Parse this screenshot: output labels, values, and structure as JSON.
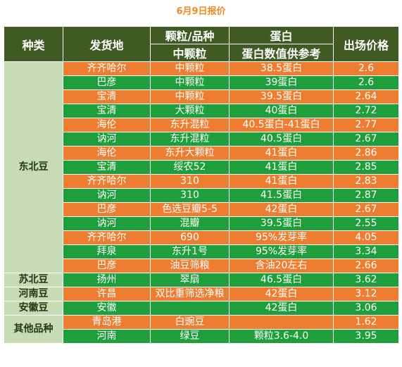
{
  "title": "6月9日报价",
  "headers": {
    "category": "种类",
    "origin": "发货地",
    "variety_top": "颗粒/品种",
    "variety_bottom": "中颗粒",
    "protein_top": "蛋白",
    "protein_bottom": "蛋白数值供参考",
    "price": "出场价格"
  },
  "groups": [
    {
      "category": "东北豆",
      "rows": [
        {
          "origin": "齐齐哈尔",
          "variety": "中颗粒",
          "protein": "38.5蛋白",
          "price": "2.6",
          "color": "orange"
        },
        {
          "origin": "巴彦",
          "variety": "中颗粒",
          "protein": "39蛋白",
          "price": "2.6",
          "color": "green"
        },
        {
          "origin": "宝清",
          "variety": "中颗粒",
          "protein": "39.5蛋白",
          "price": "2.64",
          "color": "orange"
        },
        {
          "origin": "宝清",
          "variety": "大颗粒",
          "protein": "40蛋白",
          "price": "2.72",
          "color": "green"
        },
        {
          "origin": "海伦",
          "variety": "东升混粒",
          "protein": "40.5蛋白-41蛋白",
          "price": "2.77",
          "color": "orange"
        },
        {
          "origin": "讷河",
          "variety": "东升混粒",
          "protein": "40.5蛋白",
          "price": "2.67",
          "color": "green"
        },
        {
          "origin": "海伦",
          "variety": "东升大颗粒",
          "protein": "41蛋白",
          "price": "2.86",
          "color": "orange"
        },
        {
          "origin": "宝清",
          "variety": "绥农52",
          "protein": "41蛋白",
          "price": "2.85",
          "color": "green"
        },
        {
          "origin": "齐齐哈尔",
          "variety": "310",
          "protein": "41蛋白",
          "price": "2.83",
          "color": "orange"
        },
        {
          "origin": "讷河",
          "variety": "310",
          "protein": "41.5蛋白",
          "price": "2.87",
          "color": "green"
        },
        {
          "origin": "巴彦",
          "variety": "色选豆瓣5-5",
          "protein": "42蛋白",
          "price": "2.67",
          "color": "orange"
        },
        {
          "origin": "讷河",
          "variety": "混瓣",
          "protein": "39.5蛋白",
          "price": "2.55",
          "color": "green"
        },
        {
          "origin": "齐齐哈尔",
          "variety": "690",
          "protein": "95%发芽率",
          "price": "4.05",
          "color": "orange"
        },
        {
          "origin": "拜泉",
          "variety": "东升1号",
          "protein": "95%发芽率",
          "price": "3.34",
          "color": "green"
        },
        {
          "origin": "巴彦",
          "variety": "油豆筛粮",
          "protein": "含油20左右",
          "price": "2.66",
          "color": "orange"
        }
      ]
    },
    {
      "category": "苏北豆",
      "rows": [
        {
          "origin": "扬州",
          "variety": "翠扇",
          "protein": "46.5蛋白",
          "price": "3.62",
          "color": "green"
        }
      ]
    },
    {
      "category": "河南豆",
      "rows": [
        {
          "origin": "许昌",
          "variety": "双比重筛选净粮",
          "protein": "42蛋白",
          "price": "3.12",
          "color": "orange"
        }
      ]
    },
    {
      "category": "安徽豆",
      "rows": [
        {
          "origin": "安徽",
          "variety": "",
          "protein": "42蛋白",
          "price": "3.06",
          "color": "green"
        }
      ]
    },
    {
      "category": "其他品种",
      "rows": [
        {
          "origin": "青岛港",
          "variety": "白豌豆",
          "protein": "",
          "price": "1.62",
          "color": "orange"
        },
        {
          "origin": "河南",
          "variety": "绿豆",
          "protein": "颗粒3.6-4.0",
          "price": "3.95",
          "color": "green"
        }
      ]
    }
  ]
}
